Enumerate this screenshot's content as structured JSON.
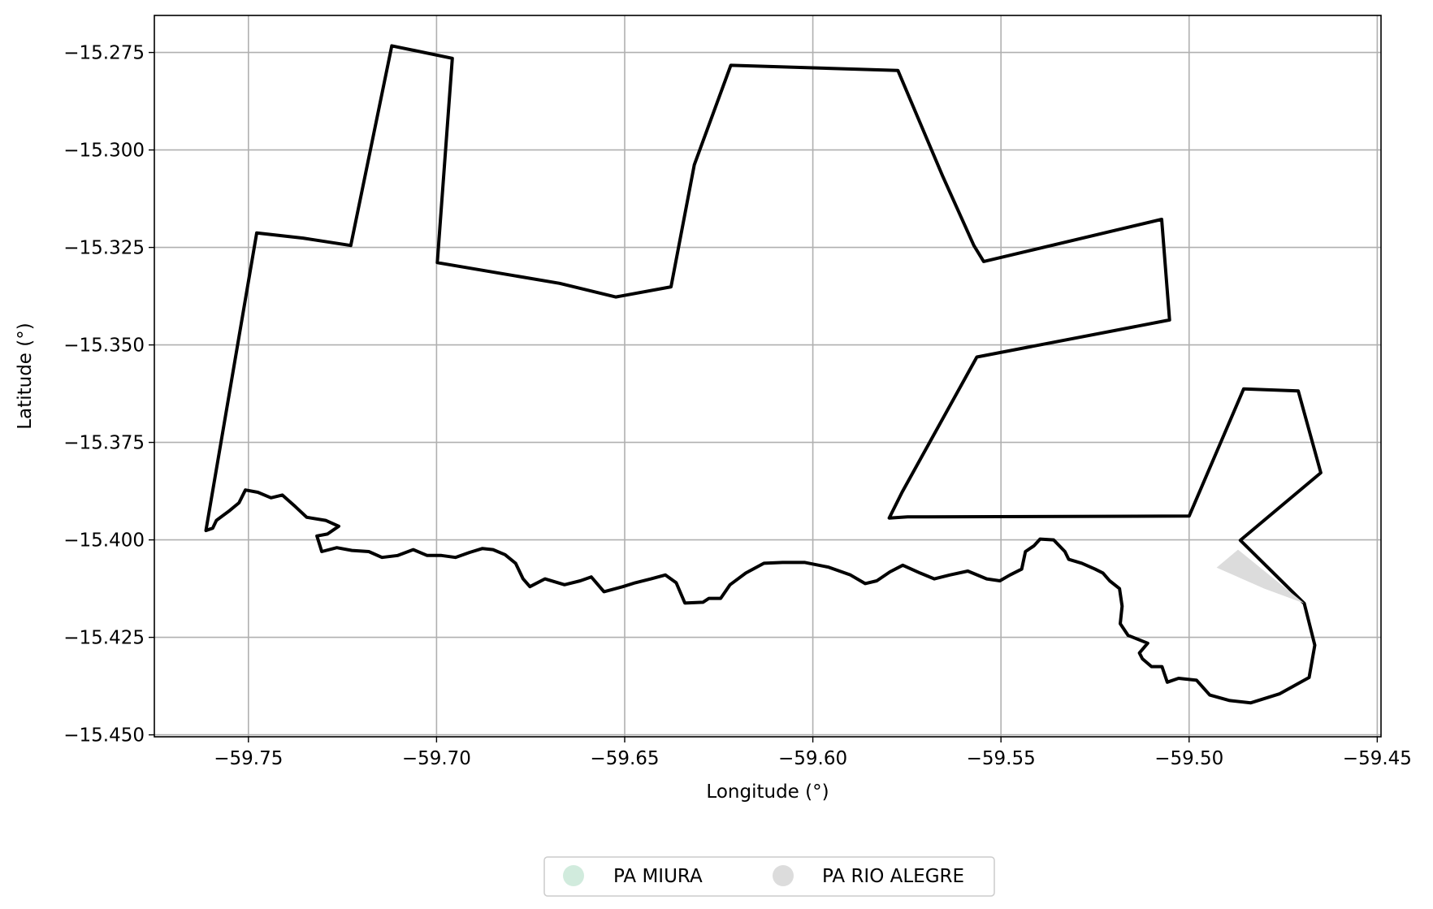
{
  "chart_data": {
    "type": "map",
    "xlabel": "Longitude (°)",
    "ylabel": "Latitude (°)",
    "xlim": [
      -59.775,
      -59.449
    ],
    "ylim": [
      -15.4505,
      -15.2655
    ],
    "xticks": [
      -59.75,
      -59.7,
      -59.65,
      -59.6,
      -59.55,
      -59.5,
      -59.45
    ],
    "xtick_labels": [
      "−59.75",
      "−59.70",
      "−59.65",
      "−59.60",
      "−59.55",
      "−59.50",
      "−59.45"
    ],
    "yticks": [
      -15.275,
      -15.3,
      -15.325,
      -15.35,
      -15.375,
      -15.4,
      -15.425,
      -15.45
    ],
    "ytick_labels": [
      "−15.275",
      "−15.300",
      "−15.325",
      "−15.350",
      "−15.375",
      "−15.400",
      "−15.425",
      "−15.450"
    ],
    "grid": true,
    "legend": {
      "placement": "bottom-center-outside",
      "entries": [
        {
          "name": "PA MIURA",
          "color": "#d1ebdd"
        },
        {
          "name": "PA RIO ALEGRE",
          "color": "#dcdcdc"
        }
      ]
    },
    "polygons": [
      {
        "name": "PA MIURA",
        "fill": "#d1ebdd",
        "stroke": "#000000",
        "coordinates": [
          [
            -59.7613,
            -15.3976
          ],
          [
            -59.7478,
            -15.3213
          ],
          [
            -59.7355,
            -15.3226
          ],
          [
            -59.7228,
            -15.3245
          ],
          [
            -59.7119,
            -15.2733
          ],
          [
            -59.6958,
            -15.2765
          ],
          [
            -59.6998,
            -15.3289
          ],
          [
            -59.6673,
            -15.3342
          ],
          [
            -59.6524,
            -15.3377
          ],
          [
            -59.6377,
            -15.3351
          ],
          [
            -59.6315,
            -15.3038
          ],
          [
            -59.6218,
            -15.2783
          ],
          [
            -59.5774,
            -15.2796
          ],
          [
            -59.5655,
            -15.3067
          ],
          [
            -59.5572,
            -15.3245
          ],
          [
            -59.5546,
            -15.3286
          ],
          [
            -59.5073,
            -15.3178
          ],
          [
            -59.5052,
            -15.3436
          ],
          [
            -59.5564,
            -15.3531
          ],
          [
            -59.5763,
            -15.3878
          ],
          [
            -59.5797,
            -15.3944
          ],
          [
            -59.5748,
            -15.3941
          ],
          [
            -59.5,
            -15.3939
          ],
          [
            -59.4855,
            -15.3613
          ],
          [
            -59.471,
            -15.3618
          ],
          [
            -59.465,
            -15.3828
          ],
          [
            -59.4864,
            -15.4001
          ],
          [
            -59.4694,
            -15.4163
          ],
          [
            -59.4666,
            -15.427
          ],
          [
            -59.4681,
            -15.4353
          ],
          [
            -59.476,
            -15.4395
          ],
          [
            -59.4836,
            -15.4418
          ],
          [
            -59.4892,
            -15.4412
          ],
          [
            -59.4945,
            -15.4398
          ],
          [
            -59.498,
            -15.436
          ],
          [
            -59.5028,
            -15.4355
          ],
          [
            -59.5058,
            -15.4365
          ],
          [
            -59.5072,
            -15.4325
          ],
          [
            -59.51,
            -15.4325
          ],
          [
            -59.5124,
            -15.4305
          ],
          [
            -59.5132,
            -15.429
          ],
          [
            -59.511,
            -15.4265
          ],
          [
            -59.5162,
            -15.4245
          ],
          [
            -59.5183,
            -15.4215
          ],
          [
            -59.5178,
            -15.417
          ],
          [
            -59.5185,
            -15.4125
          ],
          [
            -59.5211,
            -15.4105
          ],
          [
            -59.5229,
            -15.4085
          ],
          [
            -59.525,
            -15.4075
          ],
          [
            -59.5285,
            -15.406
          ],
          [
            -59.532,
            -15.405
          ],
          [
            -59.533,
            -15.403
          ],
          [
            -59.536,
            -15.4
          ],
          [
            -59.5396,
            -15.3998
          ],
          [
            -59.5412,
            -15.4015
          ],
          [
            -59.5435,
            -15.403
          ],
          [
            -59.5445,
            -15.4075
          ],
          [
            -59.5476,
            -15.409
          ],
          [
            -59.5503,
            -15.4105
          ],
          [
            -59.5538,
            -15.41
          ],
          [
            -59.5588,
            -15.408
          ],
          [
            -59.5636,
            -15.409
          ],
          [
            -59.5677,
            -15.41
          ],
          [
            -59.5715,
            -15.4085
          ],
          [
            -59.5761,
            -15.4065
          ],
          [
            -59.5795,
            -15.4082
          ],
          [
            -59.583,
            -15.4105
          ],
          [
            -59.5861,
            -15.4112
          ],
          [
            -59.59,
            -15.409
          ],
          [
            -59.5958,
            -15.407
          ],
          [
            -59.6021,
            -15.4058
          ],
          [
            -59.608,
            -15.4058
          ],
          [
            -59.613,
            -15.406
          ],
          [
            -59.6178,
            -15.4085
          ],
          [
            -59.622,
            -15.4115
          ],
          [
            -59.6245,
            -15.415
          ],
          [
            -59.6276,
            -15.415
          ],
          [
            -59.6292,
            -15.416
          ],
          [
            -59.634,
            -15.4162
          ],
          [
            -59.6363,
            -15.411
          ],
          [
            -59.6392,
            -15.409
          ],
          [
            -59.643,
            -15.41
          ],
          [
            -59.6472,
            -15.411
          ],
          [
            -59.6505,
            -15.412
          ],
          [
            -59.6555,
            -15.4133
          ],
          [
            -59.6589,
            -15.4095
          ],
          [
            -59.6618,
            -15.4105
          ],
          [
            -59.666,
            -15.4115
          ],
          [
            -59.6712,
            -15.41
          ],
          [
            -59.6752,
            -15.412
          ],
          [
            -59.677,
            -15.41
          ],
          [
            -59.679,
            -15.406
          ],
          [
            -59.6818,
            -15.4038
          ],
          [
            -59.685,
            -15.4025
          ],
          [
            -59.6878,
            -15.4022
          ],
          [
            -59.6912,
            -15.4032
          ],
          [
            -59.695,
            -15.4045
          ],
          [
            -59.6987,
            -15.404
          ],
          [
            -59.7025,
            -15.404
          ],
          [
            -59.7062,
            -15.4025
          ],
          [
            -59.7103,
            -15.404
          ],
          [
            -59.7145,
            -15.4045
          ],
          [
            -59.718,
            -15.403
          ],
          [
            -59.7225,
            -15.4027
          ],
          [
            -59.7265,
            -15.402
          ],
          [
            -59.7305,
            -15.403
          ],
          [
            -59.7318,
            -15.399
          ],
          [
            -59.729,
            -15.3985
          ],
          [
            -59.726,
            -15.3965
          ],
          [
            -59.7295,
            -15.395
          ],
          [
            -59.7345,
            -15.3942
          ],
          [
            -59.7375,
            -15.3915
          ],
          [
            -59.741,
            -15.3885
          ],
          [
            -59.744,
            -15.3892
          ],
          [
            -59.7475,
            -15.3878
          ],
          [
            -59.7508,
            -15.3872
          ],
          [
            -59.7525,
            -15.3905
          ],
          [
            -59.755,
            -15.3925
          ],
          [
            -59.7585,
            -15.395
          ],
          [
            -59.7595,
            -15.397
          ]
        ]
      },
      {
        "name": "PA RIO ALEGRE",
        "fill": "#dcdcdc",
        "stroke": "none",
        "coordinates": [
          [
            -59.4927,
            -15.4071
          ],
          [
            -59.487,
            -15.4025
          ],
          [
            -59.4694,
            -15.4163
          ],
          [
            -59.48,
            -15.4125
          ]
        ]
      }
    ]
  }
}
